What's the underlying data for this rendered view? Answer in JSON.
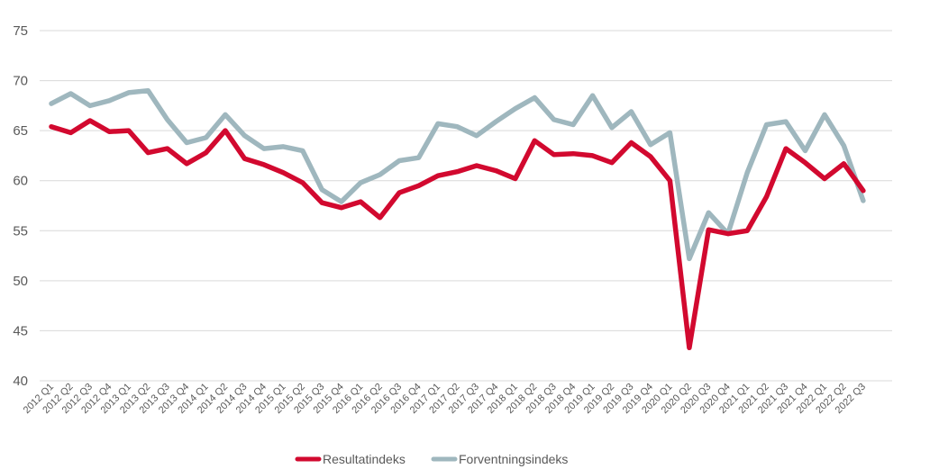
{
  "chart_data": {
    "type": "line",
    "title": "",
    "xlabel": "",
    "ylabel": "",
    "ylim": [
      40,
      75
    ],
    "yticks": [
      40,
      45,
      50,
      55,
      60,
      65,
      70,
      75
    ],
    "grid": true,
    "legend_position": "bottom",
    "categories": [
      "2012 Q1",
      "2012 Q2",
      "2012 Q3",
      "2012 Q4",
      "2013 Q1",
      "2013 Q2",
      "2013 Q3",
      "2013 Q4",
      "2014 Q1",
      "2014 Q2",
      "2014 Q3",
      "2014 Q4",
      "2015 Q1",
      "2015 Q2",
      "2015 Q3",
      "2015 Q4",
      "2016 Q1",
      "2016 Q2",
      "2016 Q3",
      "2016 Q4",
      "2017 Q1",
      "2017 Q2",
      "2017 Q3",
      "2017 Q4",
      "2018 Q1",
      "2018 Q2",
      "2018 Q3",
      "2018 Q4",
      "2019 Q1",
      "2019 Q2",
      "2019 Q3",
      "2019 Q4",
      "2020 Q1",
      "2020 Q2",
      "2020 Q3",
      "2020 Q4",
      "2021 Q1",
      "2021 Q2",
      "2021 Q3",
      "2021 Q4",
      "2022 Q1",
      "2022 Q2",
      "2022 Q3"
    ],
    "series": [
      {
        "name": "Resultatindeks",
        "color": "#d2092f",
        "values": [
          65.4,
          64.8,
          66.0,
          64.9,
          65.0,
          62.8,
          63.2,
          61.7,
          62.8,
          65.0,
          62.2,
          61.6,
          60.8,
          59.8,
          57.8,
          57.3,
          57.9,
          56.3,
          58.8,
          59.5,
          60.5,
          60.9,
          61.5,
          61.0,
          60.2,
          64.0,
          62.6,
          62.7,
          62.5,
          61.8,
          63.8,
          62.4,
          60.0,
          43.3,
          55.1,
          54.7,
          55.0,
          58.4,
          63.2,
          61.8,
          60.2,
          61.7,
          59.0
        ]
      },
      {
        "name": "Forventningsindeks",
        "color": "#9fb7be",
        "values": [
          67.7,
          68.7,
          67.5,
          68.0,
          68.8,
          69.0,
          66.1,
          63.8,
          64.3,
          66.6,
          64.5,
          63.2,
          63.4,
          63.0,
          59.1,
          57.9,
          59.8,
          60.6,
          62.0,
          62.3,
          65.7,
          65.4,
          64.5,
          65.9,
          67.2,
          68.3,
          66.1,
          65.6,
          68.5,
          65.3,
          66.9,
          63.6,
          64.8,
          52.2,
          56.8,
          54.7,
          60.8,
          65.6,
          65.9,
          63.0,
          66.6,
          63.5,
          58.0
        ]
      }
    ]
  }
}
